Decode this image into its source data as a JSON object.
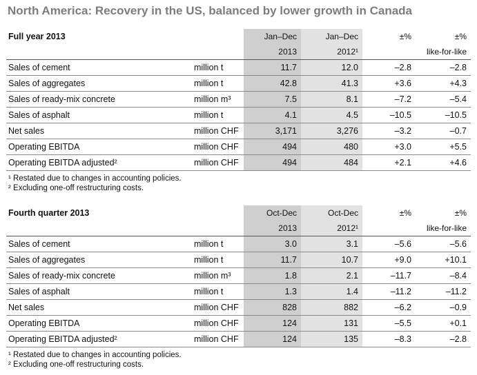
{
  "title": "North America: Recovery in the US, balanced by lower growth in Canada",
  "sections": [
    {
      "heading": "Full year 2013",
      "col_headers": {
        "c1_line1": "Jan–Dec",
        "c1_line2": "2013",
        "c2_line1": "Jan–Dec",
        "c2_line2": "2012¹",
        "c3_line1": "±%",
        "c3_line2": "",
        "c4_line1": "±%",
        "c4_line2": "like-for-like"
      },
      "rows": [
        {
          "label": "Sales of cement",
          "unit": "million t",
          "v1": "11.7",
          "v2": "12.0",
          "v3": "–2.8",
          "v4": "–2.8"
        },
        {
          "label": "Sales of aggregates",
          "unit": "million t",
          "v1": "42.8",
          "v2": "41.3",
          "v3": "+3.6",
          "v4": "+4.3"
        },
        {
          "label": "Sales of ready-mix concrete",
          "unit": "million m³",
          "v1": "7.5",
          "v2": "8.1",
          "v3": "–7.2",
          "v4": "–5.4"
        },
        {
          "label": "Sales of asphalt",
          "unit": "million t",
          "v1": "4.1",
          "v2": "4.5",
          "v3": "–10.5",
          "v4": "–10.5"
        },
        {
          "label": "Net sales",
          "unit": "million CHF",
          "v1": "3,171",
          "v2": "3,276",
          "v3": "–3.2",
          "v4": "–0.7"
        },
        {
          "label": "Operating EBITDA",
          "unit": "million CHF",
          "v1": "494",
          "v2": "480",
          "v3": "+3.0",
          "v4": "+5.5"
        },
        {
          "label": "Operating EBITDA adjusted²",
          "unit": "million CHF",
          "v1": "494",
          "v2": "484",
          "v3": "+2.1",
          "v4": "+4.6"
        }
      ],
      "footnotes": [
        "¹ Restated due to changes in accounting policies.",
        "² Excluding one-off restructuring costs."
      ]
    },
    {
      "heading": "Fourth quarter 2013",
      "col_headers": {
        "c1_line1": "Oct-Dec",
        "c1_line2": "2013",
        "c2_line1": "Oct-Dec",
        "c2_line2": "2012¹",
        "c3_line1": "±%",
        "c3_line2": "",
        "c4_line1": "±%",
        "c4_line2": "like-for-like"
      },
      "rows": [
        {
          "label": "Sales of cement",
          "unit": "million t",
          "v1": "3.0",
          "v2": "3.1",
          "v3": "–5.6",
          "v4": "–5.6"
        },
        {
          "label": "Sales of aggregates",
          "unit": "million t",
          "v1": "11.7",
          "v2": "10.7",
          "v3": "+9.0",
          "v4": "+10.1"
        },
        {
          "label": "Sales of ready-mix concrete",
          "unit": "million m³",
          "v1": "1.8",
          "v2": "2.1",
          "v3": "–11.7",
          "v4": "–8.4"
        },
        {
          "label": "Sales of asphalt",
          "unit": "million t",
          "v1": "1.3",
          "v2": "1.4",
          "v3": "–11.2",
          "v4": "–11.2"
        },
        {
          "label": "Net sales",
          "unit": "million CHF",
          "v1": "828",
          "v2": "882",
          "v3": "–6.2",
          "v4": "–0.9"
        },
        {
          "label": "Operating EBITDA",
          "unit": "million CHF",
          "v1": "124",
          "v2": "131",
          "v3": "–5.5",
          "v4": "+0.1"
        },
        {
          "label": "Operating EBITDA adjusted²",
          "unit": "million CHF",
          "v1": "124",
          "v2": "135",
          "v3": "–8.3",
          "v4": "–2.8"
        }
      ],
      "footnotes": [
        "¹ Restated due to changes in accounting policies.",
        "² Excluding one-off restructuring costs."
      ]
    }
  ],
  "colors": {
    "current_col": "#cfcfcf",
    "prior_col": "#e2e2e2",
    "title": "#7d7d7d"
  }
}
